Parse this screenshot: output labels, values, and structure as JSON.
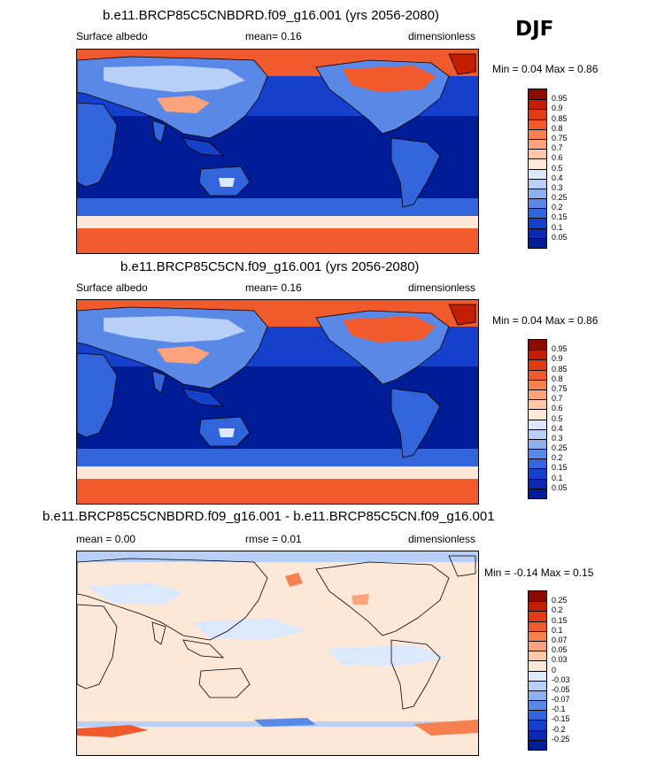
{
  "season": "DJF",
  "panels": [
    {
      "title": "b.e11.BRCP85C5CNBDRD.f09_g16.001 (yrs 2056-2080)",
      "left_label": "Surface albedo",
      "center_label": "mean=  0.16",
      "right_label": "dimensionless",
      "minmax": "Min =  0.04 Max =  0.86",
      "colorbar": {
        "labels": [
          "0.95",
          "0.9",
          "0.85",
          "0.8",
          "0.75",
          "0.7",
          "0.6",
          "0.5",
          "0.4",
          "0.3",
          "0.25",
          "0.2",
          "0.15",
          "0.1",
          "0.05"
        ],
        "colors": [
          "#8c0a00",
          "#c41e00",
          "#e23a12",
          "#f05a2c",
          "#f78050",
          "#fba47c",
          "#fcc8a8",
          "#fde8d8",
          "#dce8fb",
          "#b8d0f7",
          "#8cb0f0",
          "#5a88e6",
          "#3264dc",
          "#1440cc",
          "#0a28b4",
          "#001c96"
        ]
      }
    },
    {
      "title": "b.e11.BRCP85C5CN.f09_g16.001 (yrs 2056-2080)",
      "left_label": "Surface albedo",
      "center_label": "mean=  0.16",
      "right_label": "dimensionless",
      "minmax": "Min =  0.04 Max =  0.86",
      "colorbar": {
        "labels": [
          "0.95",
          "0.9",
          "0.85",
          "0.8",
          "0.75",
          "0.7",
          "0.6",
          "0.5",
          "0.4",
          "0.3",
          "0.25",
          "0.2",
          "0.15",
          "0.1",
          "0.05"
        ],
        "colors": [
          "#8c0a00",
          "#c41e00",
          "#e23a12",
          "#f05a2c",
          "#f78050",
          "#fba47c",
          "#fcc8a8",
          "#fde8d8",
          "#dce8fb",
          "#b8d0f7",
          "#8cb0f0",
          "#5a88e6",
          "#3264dc",
          "#1440cc",
          "#0a28b4",
          "#001c96"
        ]
      }
    },
    {
      "title": "b.e11.BRCP85C5CNBDRD.f09_g16.001 - b.e11.BRCP85C5CN.f09_g16.001",
      "left_label": "mean =  0.00",
      "center_label": "rmse =  0.01",
      "right_label": "dimensionless",
      "minmax": "Min =  -0.14 Max =  0.15",
      "colorbar": {
        "labels": [
          "0.25",
          "0.2",
          "0.15",
          "0.1",
          "0.07",
          "0.05",
          "0.03",
          "0",
          "-0.03",
          "-0.05",
          "-0.07",
          "-0.1",
          "-0.15",
          "-0.2",
          "-0.25"
        ],
        "colors": [
          "#8c0a00",
          "#c41e00",
          "#e23a12",
          "#f05a2c",
          "#f78050",
          "#fba47c",
          "#fcc8a8",
          "#fde8d8",
          "#dce8fb",
          "#b8d0f7",
          "#8cb0f0",
          "#5a88e6",
          "#3264dc",
          "#1440cc",
          "#0a28b4",
          "#001c96"
        ]
      }
    }
  ]
}
